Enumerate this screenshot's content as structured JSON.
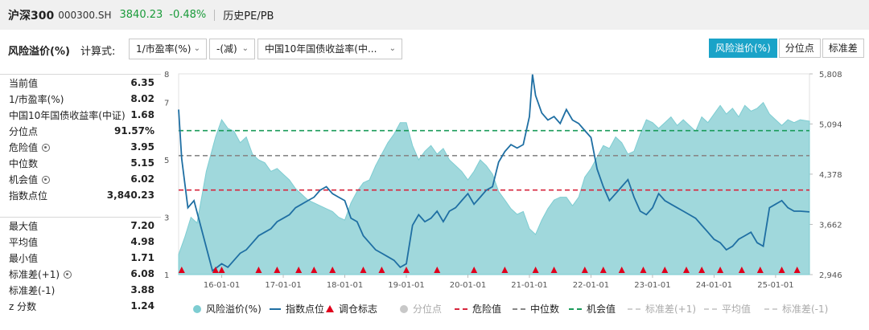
{
  "header": {
    "index_name": "沪深300",
    "index_code": "000300.SH",
    "price": "3840.23",
    "change": "-0.48%",
    "page_tab": "历史PE/PB"
  },
  "controls": {
    "title": "风险溢价(%)",
    "calc_label": "计算式:",
    "select_1": "1/市盈率(%)",
    "select_2": "-(减)",
    "select_3": "中国10年国债收益率(中...",
    "view_buttons": [
      "风险溢价(%)",
      "分位点",
      "标准差"
    ]
  },
  "stats": {
    "group1": [
      {
        "label": "当前值",
        "value": "6.35"
      },
      {
        "label": "1/市盈率(%)",
        "value": "8.02"
      },
      {
        "label": "中国10年国债收益率(中证)",
        "value": "1.68"
      },
      {
        "label": "分位点",
        "value": "91.57%"
      },
      {
        "label": "危险值",
        "value": "3.95",
        "gear": true
      },
      {
        "label": "中位数",
        "value": "5.15"
      },
      {
        "label": "机会值",
        "value": "6.02",
        "gear": true
      },
      {
        "label": "指数点位",
        "value": "3,840.23"
      }
    ],
    "group2": [
      {
        "label": "最大值",
        "value": "7.20"
      },
      {
        "label": "平均值",
        "value": "4.98"
      },
      {
        "label": "最小值",
        "value": "1.71"
      },
      {
        "label": "标准差(+1)",
        "value": "6.08",
        "gear": true
      },
      {
        "label": "标准差(-1)",
        "value": "3.88"
      },
      {
        "label": "z 分数",
        "value": "1.24"
      }
    ]
  },
  "legend": [
    {
      "label": "风险溢价(%)",
      "kind": "dot",
      "color": "#7ecdd2"
    },
    {
      "label": "指数点位",
      "kind": "line",
      "color": "#1f6fa3"
    },
    {
      "label": "调仓标志",
      "kind": "tri",
      "color": "#e0001c"
    },
    {
      "label": "分位点",
      "kind": "dot",
      "color": "#c8c8c8",
      "dim": true
    },
    {
      "label": "危险值",
      "kind": "dash",
      "color": "#d7263d"
    },
    {
      "label": "中位数",
      "kind": "dash",
      "color": "#888888"
    },
    {
      "label": "机会值",
      "kind": "dash",
      "color": "#1a9b5a"
    },
    {
      "label": "标准差(+1)",
      "kind": "dash",
      "color": "#d0d0d0",
      "dim": true
    },
    {
      "label": "平均值",
      "kind": "dash",
      "color": "#d0d0d0",
      "dim": true
    },
    {
      "label": "标准差(-1)",
      "kind": "dash",
      "color": "#d0d0d0",
      "dim": true
    }
  ],
  "chart_data": {
    "type": "area",
    "x_ticks": [
      "16-01-01",
      "17-01-01",
      "18-01-01",
      "19-01-01",
      "20-01-01",
      "21-01-01",
      "22-01-01",
      "23-01-01",
      "24-01-01",
      "25-01-01"
    ],
    "y_left_ticks": [
      "8",
      "7",
      "5",
      "3",
      "1"
    ],
    "y_left_range": [
      1,
      8
    ],
    "y_right_ticks": [
      "5,808",
      "5,094",
      "4,378",
      "3,662",
      "2,946"
    ],
    "y_right_range": [
      2946,
      5808
    ],
    "reference_lines": {
      "danger": 3.95,
      "median": 5.15,
      "opportunity": 6.02
    },
    "x_range": [
      2015.3,
      2025.55
    ],
    "series": [
      {
        "name": "风险溢价(%)",
        "axis": "left",
        "x": [
          2015.3,
          2015.4,
          2015.5,
          2015.6,
          2015.75,
          2015.9,
          2016.0,
          2016.1,
          2016.2,
          2016.3,
          2016.4,
          2016.5,
          2016.6,
          2016.7,
          2016.8,
          2016.9,
          2017.0,
          2017.1,
          2017.2,
          2017.3,
          2017.4,
          2017.5,
          2017.6,
          2017.7,
          2017.8,
          2017.9,
          2018.0,
          2018.1,
          2018.2,
          2018.3,
          2018.4,
          2018.5,
          2018.6,
          2018.7,
          2018.8,
          2018.9,
          2019.0,
          2019.1,
          2019.2,
          2019.3,
          2019.4,
          2019.5,
          2019.6,
          2019.7,
          2019.8,
          2019.9,
          2020.0,
          2020.1,
          2020.2,
          2020.3,
          2020.4,
          2020.5,
          2020.6,
          2020.7,
          2020.8,
          2020.9,
          2021.0,
          2021.1,
          2021.2,
          2021.3,
          2021.4,
          2021.5,
          2021.6,
          2021.7,
          2021.8,
          2021.9,
          2022.0,
          2022.1,
          2022.2,
          2022.3,
          2022.4,
          2022.5,
          2022.6,
          2022.7,
          2022.8,
          2022.9,
          2023.0,
          2023.1,
          2023.2,
          2023.3,
          2023.4,
          2023.5,
          2023.6,
          2023.7,
          2023.8,
          2023.9,
          2024.0,
          2024.1,
          2024.2,
          2024.3,
          2024.4,
          2024.5,
          2024.6,
          2024.7,
          2024.8,
          2024.9,
          2025.0,
          2025.1,
          2025.2,
          2025.3,
          2025.4,
          2025.55
        ],
        "values": [
          1.7,
          2.3,
          3.0,
          2.8,
          4.6,
          5.8,
          6.4,
          6.1,
          6.0,
          5.6,
          5.8,
          5.2,
          5.0,
          4.9,
          4.6,
          4.7,
          4.5,
          4.3,
          4.0,
          3.8,
          3.6,
          3.5,
          3.4,
          3.3,
          3.2,
          3.0,
          2.9,
          3.5,
          3.9,
          4.2,
          4.3,
          4.8,
          5.2,
          5.6,
          5.9,
          6.3,
          6.3,
          5.5,
          5.0,
          5.3,
          5.5,
          5.2,
          5.4,
          5.0,
          4.8,
          4.6,
          4.3,
          4.6,
          5.0,
          4.8,
          4.5,
          3.9,
          3.6,
          3.3,
          3.1,
          3.2,
          2.6,
          2.4,
          2.9,
          3.3,
          3.6,
          3.7,
          3.7,
          3.4,
          3.7,
          4.4,
          4.7,
          5.1,
          5.5,
          5.4,
          5.8,
          5.6,
          5.2,
          5.3,
          5.9,
          6.4,
          6.3,
          6.1,
          6.3,
          6.5,
          6.2,
          6.4,
          6.2,
          6.0,
          6.5,
          6.3,
          6.6,
          6.9,
          6.6,
          6.8,
          6.5,
          6.9,
          6.7,
          6.8,
          7.0,
          6.6,
          6.4,
          6.2,
          6.4,
          6.3,
          6.4,
          6.35
        ]
      },
      {
        "name": "指数点位",
        "axis": "right",
        "x": [
          2015.3,
          2015.35,
          2015.45,
          2015.55,
          2015.7,
          2015.85,
          2016.0,
          2016.1,
          2016.2,
          2016.3,
          2016.4,
          2016.5,
          2016.6,
          2016.7,
          2016.8,
          2016.9,
          2017.0,
          2017.1,
          2017.2,
          2017.3,
          2017.4,
          2017.5,
          2017.6,
          2017.7,
          2017.8,
          2017.9,
          2018.0,
          2018.1,
          2018.2,
          2018.3,
          2018.4,
          2018.5,
          2018.6,
          2018.7,
          2018.8,
          2018.9,
          2019.0,
          2019.1,
          2019.2,
          2019.3,
          2019.4,
          2019.5,
          2019.6,
          2019.7,
          2019.8,
          2019.9,
          2020.0,
          2020.1,
          2020.2,
          2020.3,
          2020.4,
          2020.5,
          2020.6,
          2020.7,
          2020.8,
          2020.9,
          2021.0,
          2021.05,
          2021.1,
          2021.2,
          2021.3,
          2021.4,
          2021.5,
          2021.6,
          2021.7,
          2021.8,
          2021.9,
          2022.0,
          2022.1,
          2022.2,
          2022.3,
          2022.4,
          2022.5,
          2022.6,
          2022.7,
          2022.8,
          2022.9,
          2023.0,
          2023.1,
          2023.2,
          2023.3,
          2023.4,
          2023.5,
          2023.6,
          2023.7,
          2023.8,
          2023.9,
          2024.0,
          2024.1,
          2024.2,
          2024.3,
          2024.4,
          2024.5,
          2024.6,
          2024.7,
          2024.8,
          2024.9,
          2025.0,
          2025.1,
          2025.2,
          2025.3,
          2025.4,
          2025.55
        ],
        "values": [
          5300,
          4600,
          3900,
          4000,
          3500,
          3000,
          3100,
          3050,
          3150,
          3250,
          3300,
          3400,
          3500,
          3550,
          3600,
          3700,
          3750,
          3800,
          3900,
          3950,
          4000,
          4050,
          4150,
          4200,
          4100,
          4050,
          4000,
          3750,
          3700,
          3500,
          3400,
          3300,
          3250,
          3200,
          3150,
          3050,
          3100,
          3650,
          3800,
          3700,
          3750,
          3850,
          3700,
          3850,
          3900,
          4000,
          4100,
          3950,
          4050,
          4150,
          4200,
          4550,
          4700,
          4800,
          4750,
          4800,
          5200,
          5800,
          5500,
          5250,
          5150,
          5200,
          5100,
          5300,
          5150,
          5100,
          5000,
          4900,
          4450,
          4200,
          4000,
          4100,
          4200,
          4300,
          4050,
          3850,
          3800,
          3900,
          4100,
          4000,
          3950,
          3900,
          3850,
          3800,
          3750,
          3650,
          3550,
          3450,
          3400,
          3300,
          3350,
          3450,
          3500,
          3550,
          3400,
          3350,
          3900,
          3950,
          4000,
          3900,
          3850,
          3850,
          3840
        ]
      }
    ],
    "rebalance_markers_x": [
      2015.35,
      2015.9,
      2016.0,
      2016.6,
      2016.9,
      2017.25,
      2017.5,
      2017.8,
      2018.3,
      2018.6,
      2019.0,
      2019.5,
      2020.1,
      2020.6,
      2021.1,
      2021.4,
      2021.9,
      2022.2,
      2022.5,
      2022.85,
      2023.2,
      2023.55,
      2023.8,
      2024.1,
      2024.45,
      2024.75,
      2025.1,
      2025.35
    ]
  }
}
